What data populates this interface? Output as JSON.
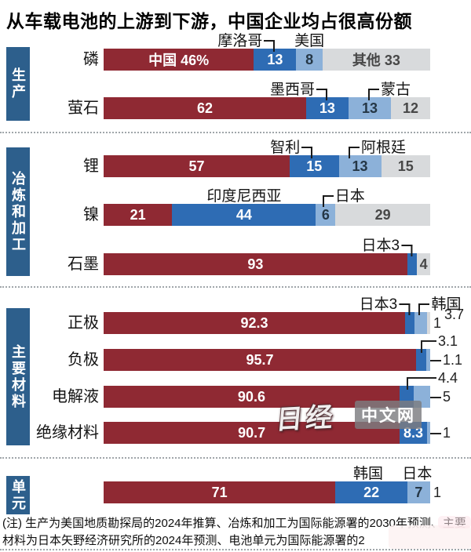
{
  "title": "从车载电池的上游到下游，中国企业均占很高份额",
  "footnote": "(注) 生产为美国地质勘探局的2024年推算、冶炼和加工为国际能源署的2030年预测、主要材料为日本矢野经济研究所的2024年预测、电池单元为国际能源署的2",
  "watermark": {
    "logo": "日经",
    "badge": "中文网"
  },
  "colors": {
    "china": "#8f2933",
    "second": "#2e6cb4",
    "third": "#8cb1d9",
    "others": "#d8dadc",
    "section_tab": "#2d5f8c"
  },
  "chart_data": {
    "type": "bar",
    "orientation": "horizontal",
    "stacked": true,
    "unit": "%",
    "axis_range": [
      0,
      100
    ],
    "grid": false,
    "legend": "inline-callouts",
    "series_roles": [
      "中国",
      "第二位国家",
      "第三位国家",
      "其他"
    ],
    "sections": [
      {
        "id": "production",
        "label": "生产",
        "rows": [
          {
            "id": "phosphorus",
            "label": "磷",
            "segments": [
              {
                "value": 46,
                "color": "china",
                "text": "中国 46%"
              },
              {
                "value": 13,
                "color": "second",
                "text": "13"
              },
              {
                "value": 8,
                "color": "third",
                "text": "8"
              },
              {
                "value": 33,
                "color": "others",
                "text": "其他 33"
              }
            ],
            "callouts": [
              {
                "text": "摩洛哥",
                "at": 52.5,
                "kind": "right"
              },
              {
                "text": "美国",
                "at": 63,
                "kind": "plain"
              }
            ]
          },
          {
            "id": "fluorite",
            "label": "萤石",
            "segments": [
              {
                "value": 62,
                "color": "china",
                "text": "62"
              },
              {
                "value": 13,
                "color": "second",
                "text": "13"
              },
              {
                "value": 13,
                "color": "third",
                "text": "13"
              },
              {
                "value": 12,
                "color": "others",
                "text": "12"
              }
            ],
            "callouts": [
              {
                "text": "墨西哥",
                "at": 68.5,
                "kind": "right"
              },
              {
                "text": "蒙古",
                "at": 81,
                "kind": "left"
              }
            ]
          }
        ]
      },
      {
        "id": "refining",
        "label": "冶炼和加工",
        "rows": [
          {
            "id": "lithium",
            "label": "锂",
            "segments": [
              {
                "value": 57,
                "color": "china",
                "text": "57"
              },
              {
                "value": 15,
                "color": "second",
                "text": "15"
              },
              {
                "value": 13,
                "color": "third",
                "text": "13"
              },
              {
                "value": 15,
                "color": "others",
                "text": "15"
              }
            ],
            "callouts": [
              {
                "text": "智利",
                "at": 64,
                "kind": "right"
              },
              {
                "text": "阿根廷",
                "at": 75,
                "kind": "left"
              }
            ]
          },
          {
            "id": "nickel",
            "label": "镍",
            "segments": [
              {
                "value": 21,
                "color": "china",
                "text": "21"
              },
              {
                "value": 44,
                "color": "second",
                "text": "44"
              },
              {
                "value": 6,
                "color": "third",
                "text": "6"
              },
              {
                "value": 29,
                "color": "others",
                "text": "29"
              }
            ],
            "callouts": [
              {
                "text": "印度尼西亚",
                "at": 43,
                "kind": "plain"
              },
              {
                "text": "日本",
                "at": 67,
                "kind": "left"
              }
            ]
          },
          {
            "id": "graphite",
            "label": "石墨",
            "segments": [
              {
                "value": 93,
                "color": "china",
                "text": "93"
              },
              {
                "value": 3,
                "color": "second",
                "text": ""
              },
              {
                "value": 4,
                "color": "others",
                "text": "4"
              }
            ],
            "callouts": [
              {
                "text": "日本3",
                "at": 94.5,
                "kind": "right"
              }
            ]
          }
        ]
      },
      {
        "id": "materials",
        "label": "主要材料",
        "rows": [
          {
            "id": "cathode",
            "label": "正极",
            "segments": [
              {
                "value": 92.3,
                "color": "china",
                "text": "92.3"
              },
              {
                "value": 3,
                "color": "second",
                "text": ""
              },
              {
                "value": 3.7,
                "color": "third",
                "text": ""
              },
              {
                "value": 1,
                "color": "others",
                "text": ""
              }
            ],
            "callouts": [
              {
                "text": "日本3",
                "at": 93.8,
                "kind": "right"
              },
              {
                "text": "韩国",
                "at": 96.5,
                "kind": "left"
              }
            ],
            "outside": [
              {
                "text": "3.7",
                "kind": "plain",
                "line": "top"
              },
              {
                "text": "1",
                "kind": "plain",
                "line": "mid"
              }
            ]
          },
          {
            "id": "anode",
            "label": "负极",
            "segments": [
              {
                "value": 95.7,
                "color": "china",
                "text": "95.7"
              },
              {
                "value": 3.1,
                "color": "second",
                "text": ""
              },
              {
                "value": 1.1,
                "color": "third",
                "text": ""
              }
            ],
            "callouts": [],
            "outside": [
              {
                "text": "3.1",
                "kind": "elbow",
                "line": "top",
                "at": 97.2
              },
              {
                "text": "1.1",
                "kind": "dash",
                "line": "mid"
              }
            ]
          },
          {
            "id": "electrolyte",
            "label": "电解液",
            "segments": [
              {
                "value": 90.6,
                "color": "china",
                "text": "90.6"
              },
              {
                "value": 4.4,
                "color": "second",
                "text": ""
              },
              {
                "value": 5,
                "color": "third",
                "text": ""
              }
            ],
            "callouts": [],
            "outside": [
              {
                "text": "4.4",
                "kind": "elbow",
                "line": "top",
                "at": 92.8
              },
              {
                "text": "5",
                "kind": "dash",
                "line": "mid"
              }
            ]
          },
          {
            "id": "insulation",
            "label": "绝缘材料",
            "segments": [
              {
                "value": 90.7,
                "color": "china",
                "text": "90.7"
              },
              {
                "value": 8.3,
                "color": "second",
                "text": "8.3"
              },
              {
                "value": 1,
                "color": "third",
                "text": ""
              }
            ],
            "callouts": [],
            "outside": [
              {
                "text": "1",
                "kind": "dash",
                "line": "mid"
              }
            ]
          }
        ]
      },
      {
        "id": "cells",
        "label": "单元",
        "rows": [
          {
            "id": "battery-cells",
            "label": "",
            "segments": [
              {
                "value": 71,
                "color": "china",
                "text": "71"
              },
              {
                "value": 22,
                "color": "second",
                "text": "22"
              },
              {
                "value": 7,
                "color": "third",
                "text": "7"
              }
            ],
            "callouts": [
              {
                "text": "韩国",
                "at": 81,
                "kind": "plain"
              },
              {
                "text": "日本",
                "at": 96,
                "kind": "plain"
              }
            ],
            "outside": [
              {
                "text": "1",
                "kind": "plain",
                "line": "mid"
              }
            ]
          }
        ]
      }
    ]
  }
}
